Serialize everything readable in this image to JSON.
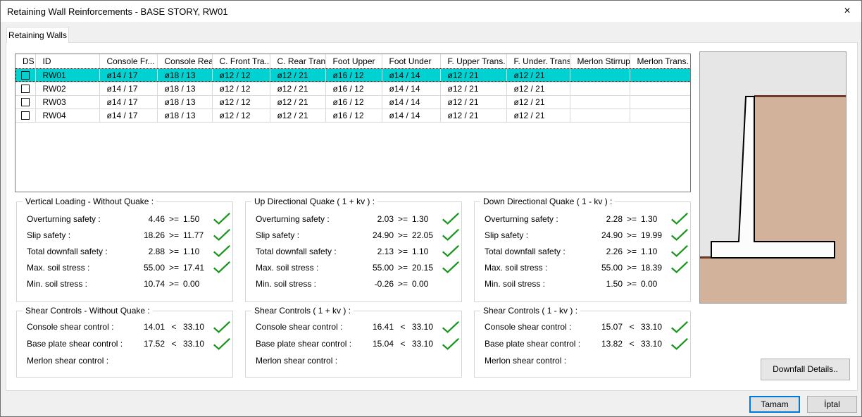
{
  "window": {
    "title": "Retaining Wall Reinforcements - BASE STORY, RW01",
    "close_glyph": "×"
  },
  "tab": {
    "label": "Retaining Walls"
  },
  "table": {
    "columns": [
      "DS",
      "ID",
      "Console Fr...",
      "Console Rear",
      "C. Front Tra...",
      "C. Rear Trans.",
      "Foot Upper",
      "Foot Under",
      "F. Upper Trans.",
      "F. Under. Trans.",
      "Merlon Stirrup",
      "Merlon Trans."
    ],
    "rows": [
      {
        "id": "RW01",
        "selected": true,
        "checked": false,
        "values": [
          "ø14 / 17",
          "ø18 / 13",
          "ø12 / 12",
          "ø12 / 21",
          "ø16 / 12",
          "ø14 / 14",
          "ø12 / 21",
          "ø12 / 21",
          "",
          ""
        ]
      },
      {
        "id": "RW02",
        "selected": false,
        "checked": false,
        "values": [
          "ø14 / 17",
          "ø18 / 13",
          "ø12 / 12",
          "ø12 / 21",
          "ø16 / 12",
          "ø14 / 14",
          "ø12 / 21",
          "ø12 / 21",
          "",
          ""
        ]
      },
      {
        "id": "RW03",
        "selected": false,
        "checked": false,
        "values": [
          "ø14 / 17",
          "ø18 / 13",
          "ø12 / 12",
          "ø12 / 21",
          "ø16 / 12",
          "ø14 / 14",
          "ø12 / 21",
          "ø12 / 21",
          "",
          ""
        ]
      },
      {
        "id": "RW04",
        "selected": false,
        "checked": false,
        "values": [
          "ø14 / 17",
          "ø18 / 13",
          "ø12 / 12",
          "ø12 / 21",
          "ø16 / 12",
          "ø14 / 14",
          "ø12 / 21",
          "ø12 / 21",
          "",
          ""
        ]
      }
    ]
  },
  "panels": [
    {
      "title": "Vertical Loading - Without Quake :",
      "rows": [
        {
          "label": "Overturning safety :",
          "value": "4.46",
          "op": ">=",
          "limit": "1.50",
          "check": true
        },
        {
          "label": "Slip safety :",
          "value": "18.26",
          "op": ">=",
          "limit": "11.77",
          "check": true
        },
        {
          "label": "Total downfall safety :",
          "value": "2.88",
          "op": ">=",
          "limit": "1.10",
          "check": true
        },
        {
          "label": "Max. soil stress :",
          "value": "55.00",
          "op": ">=",
          "limit": "17.41",
          "check": true
        },
        {
          "label": "Min. soil stress :",
          "value": "10.74",
          "op": ">=",
          "limit": "0.00",
          "check": false
        }
      ]
    },
    {
      "title": "Up Directional Quake ( 1 + kv ) :",
      "rows": [
        {
          "label": "Overturning safety :",
          "value": "2.03",
          "op": ">=",
          "limit": "1.30",
          "check": true
        },
        {
          "label": "Slip safety :",
          "value": "24.90",
          "op": ">=",
          "limit": "22.05",
          "check": true
        },
        {
          "label": "Total downfall safety :",
          "value": "2.13",
          "op": ">=",
          "limit": "1.10",
          "check": true
        },
        {
          "label": "Max. soil stress :",
          "value": "55.00",
          "op": ">=",
          "limit": "20.15",
          "check": true
        },
        {
          "label": "Min. soil stress :",
          "value": "-0.26",
          "op": ">=",
          "limit": "0.00",
          "check": false
        }
      ]
    },
    {
      "title": "Down Directional Quake ( 1 - kv ) :",
      "rows": [
        {
          "label": "Overturning safety :",
          "value": "2.28",
          "op": ">=",
          "limit": "1.30",
          "check": true
        },
        {
          "label": "Slip safety :",
          "value": "24.90",
          "op": ">=",
          "limit": "19.99",
          "check": true
        },
        {
          "label": "Total downfall safety :",
          "value": "2.26",
          "op": ">=",
          "limit": "1.10",
          "check": true
        },
        {
          "label": "Max. soil stress :",
          "value": "55.00",
          "op": ">=",
          "limit": "18.39",
          "check": true
        },
        {
          "label": "Min. soil stress :",
          "value": "1.50",
          "op": ">=",
          "limit": "0.00",
          "check": false
        }
      ]
    },
    {
      "title": "Shear Controls - Without Quake :",
      "rows": [
        {
          "label": "Console shear control :",
          "value": "14.01",
          "op": "<",
          "limit": "33.10",
          "check": true
        },
        {
          "label": "Base plate shear control :",
          "value": "17.52",
          "op": "<",
          "limit": "33.10",
          "check": true
        },
        {
          "label": "Merlon shear control :",
          "value": "",
          "op": "",
          "limit": "",
          "check": false
        }
      ]
    },
    {
      "title": "Shear Controls ( 1 + kv ) :",
      "rows": [
        {
          "label": "Console shear control :",
          "value": "16.41",
          "op": "<",
          "limit": "33.10",
          "check": true
        },
        {
          "label": "Base plate shear control :",
          "value": "15.04",
          "op": "<",
          "limit": "33.10",
          "check": true
        },
        {
          "label": "Merlon shear control :",
          "value": "",
          "op": "",
          "limit": "",
          "check": false
        }
      ]
    },
    {
      "title": "Shear Controls ( 1 - kv ) :",
      "rows": [
        {
          "label": "Console shear control :",
          "value": "15.07",
          "op": "<",
          "limit": "33.10",
          "check": true
        },
        {
          "label": "Base plate shear control :",
          "value": "13.82",
          "op": "<",
          "limit": "33.10",
          "check": true
        },
        {
          "label": "Merlon shear control :",
          "value": "",
          "op": "",
          "limit": "",
          "check": false
        }
      ]
    }
  ],
  "buttons": {
    "downfall": "Downfall Details..",
    "ok": "Tamam",
    "cancel": "İptal"
  },
  "colors": {
    "selection_cyan": "#00d2d2",
    "check_green": "#18961c",
    "soil_tan": "#d3b29c",
    "ground_brown": "#6e3a28",
    "diagram_bg": "#e6e6e6",
    "wall_fill": "#fcfcfc",
    "wall_outline": "#000000",
    "default_button_accent": "#0078d7"
  }
}
